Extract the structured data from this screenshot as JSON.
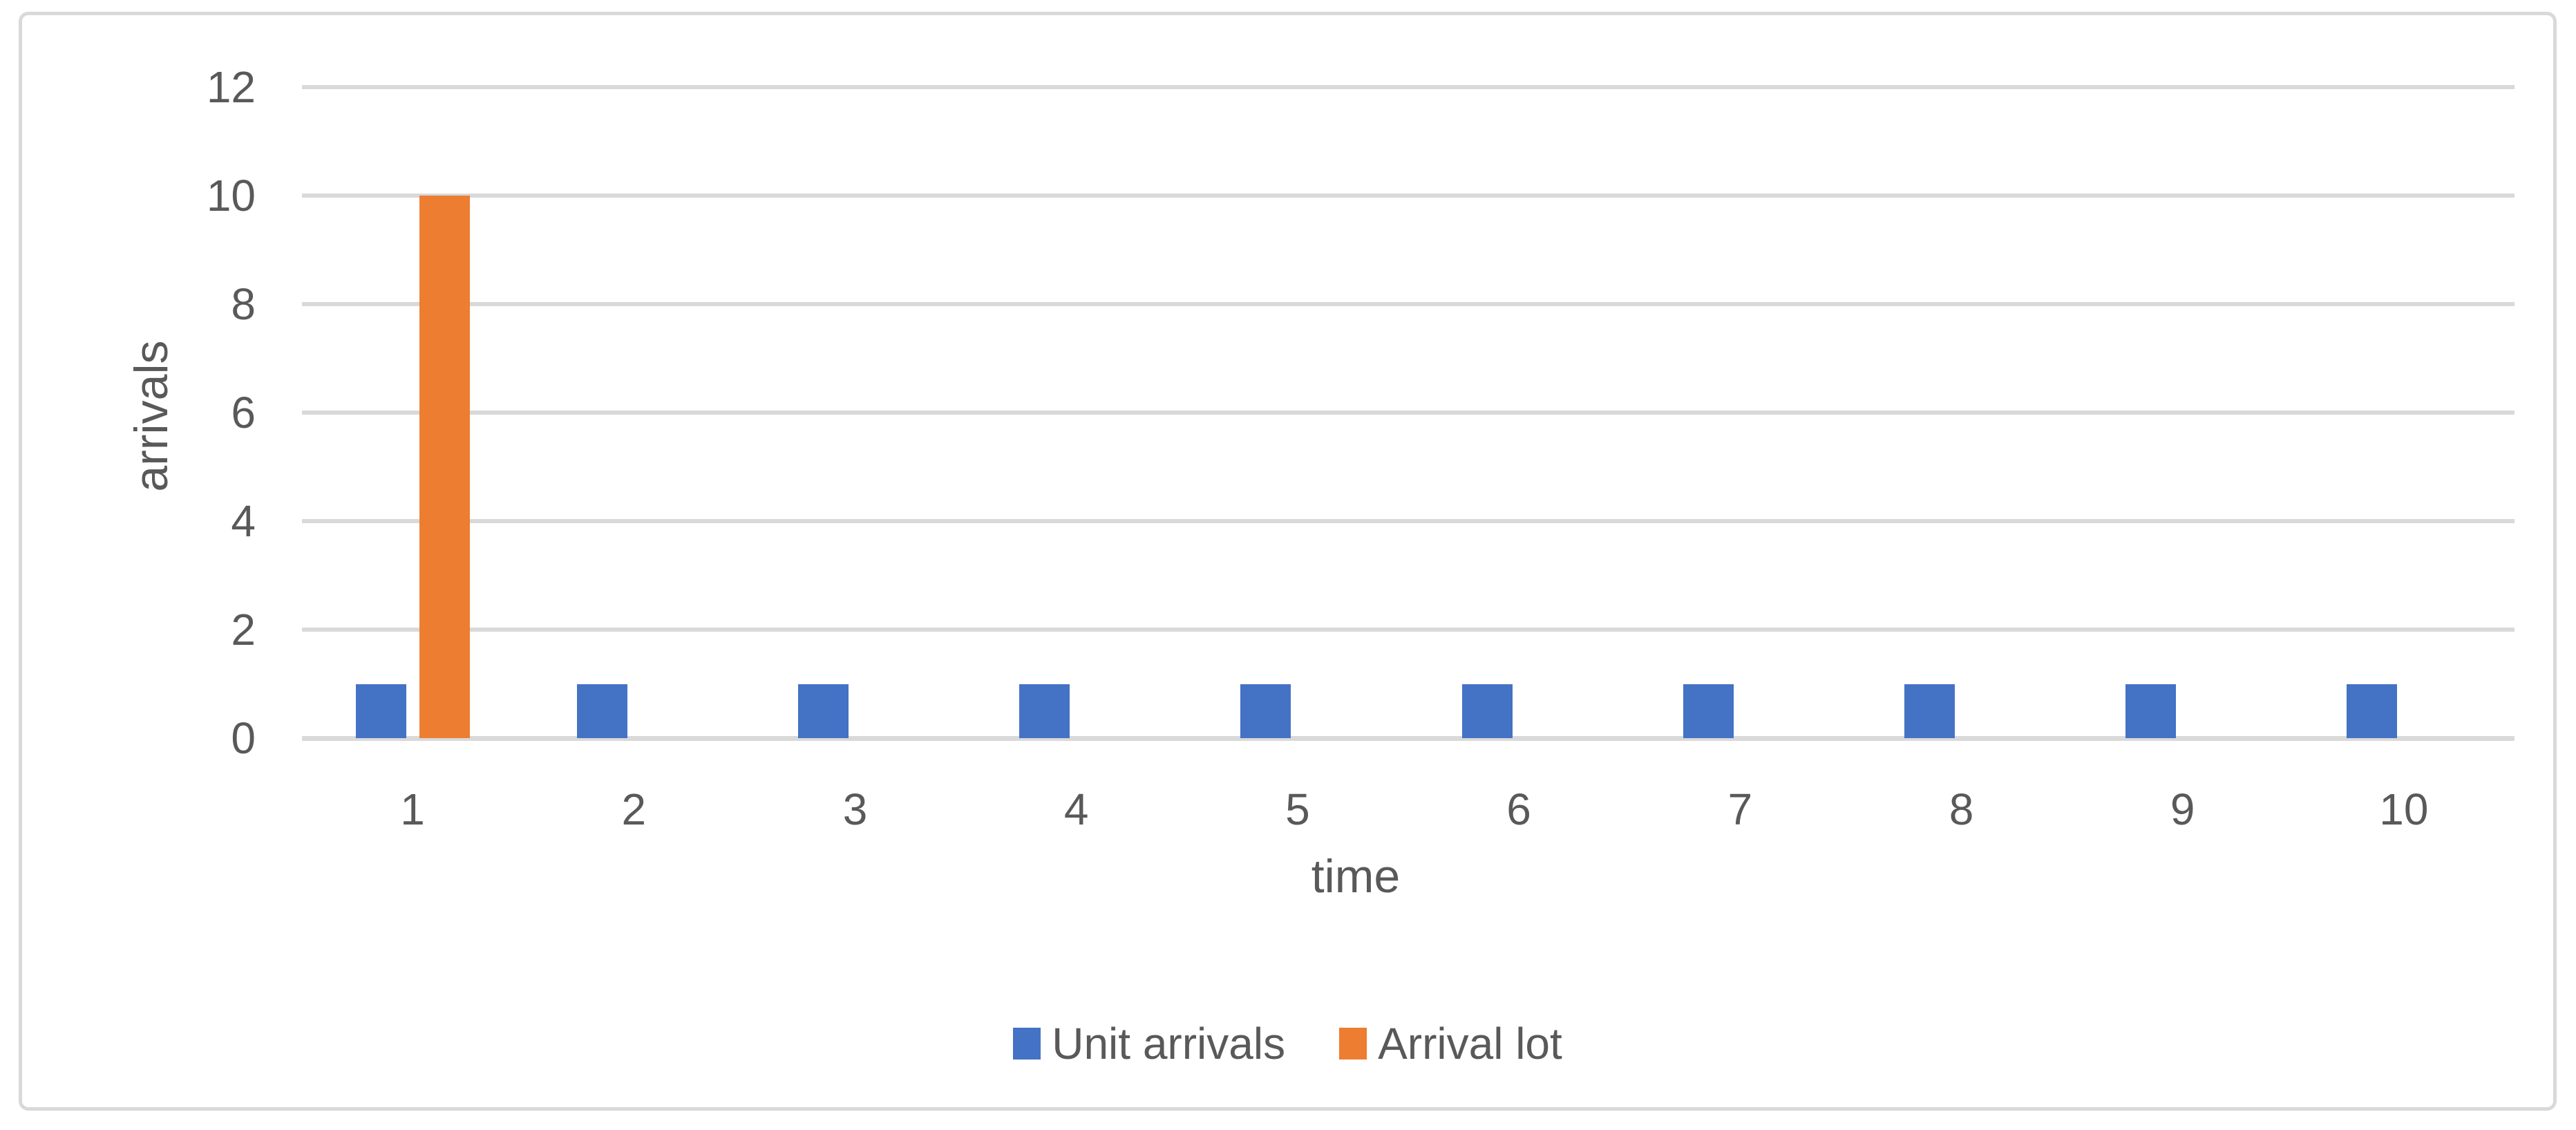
{
  "chart_data": {
    "type": "bar",
    "title": "",
    "xlabel": "time",
    "ylabel": "arrivals",
    "categories": [
      "1",
      "2",
      "3",
      "4",
      "5",
      "6",
      "7",
      "8",
      "9",
      "10"
    ],
    "series": [
      {
        "name": "Unit arrivals",
        "color": "#4472C4",
        "values": [
          1,
          1,
          1,
          1,
          1,
          1,
          1,
          1,
          1,
          1
        ]
      },
      {
        "name": "Arrival lot",
        "color": "#ED7D31",
        "values": [
          10,
          0,
          0,
          0,
          0,
          0,
          0,
          0,
          0,
          0
        ]
      }
    ],
    "ylim": [
      0,
      12
    ],
    "yticks": [
      0,
      2,
      4,
      6,
      8,
      10,
      12
    ],
    "grid": true,
    "legend_position": "bottom",
    "colors": {
      "text": "#595959",
      "gridline": "#D9D9D9",
      "border": "#D9D9D9",
      "background": "#FFFFFF"
    }
  }
}
